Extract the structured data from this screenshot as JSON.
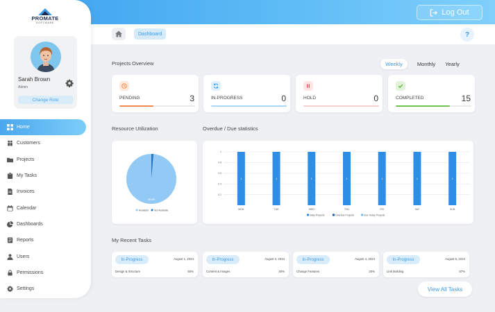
{
  "app": {
    "logo_text": "PROMATE",
    "logo_subtext": "SOFTWARE",
    "logout_label": "Log Out"
  },
  "profile": {
    "name": "Sarah Brown",
    "role": "Admin",
    "change_role_label": "Change Role"
  },
  "sidebar": {
    "items": [
      {
        "label": "Home",
        "icon": "grid-icon",
        "active": true
      },
      {
        "label": "Customers",
        "icon": "customers-icon"
      },
      {
        "label": "Projects",
        "icon": "folder-icon"
      },
      {
        "label": "My Tasks",
        "icon": "clipboard-icon"
      },
      {
        "label": "Invoices",
        "icon": "invoice-icon"
      },
      {
        "label": "Calendar",
        "icon": "calendar-icon"
      },
      {
        "label": "Dashboards",
        "icon": "pie-chart-icon"
      },
      {
        "label": "Reports",
        "icon": "report-icon"
      },
      {
        "label": "Users",
        "icon": "user-icon"
      },
      {
        "label": "Permissions",
        "icon": "lock-icon"
      },
      {
        "label": "Settings",
        "icon": "gear-icon"
      }
    ]
  },
  "breadcrumb": {
    "current": "Dashboard",
    "help_label": "?"
  },
  "overview": {
    "title": "Projects Overview",
    "periods": [
      "Weekly",
      "Monthly",
      "Yearly"
    ],
    "active_period": "Weekly",
    "cards": [
      {
        "label": "PENDING",
        "value": "3",
        "progress": 0.45,
        "color": "#f0894a",
        "icon_bg": "#fde9dc",
        "icon": "clock-icon"
      },
      {
        "label": "IN-PROGRESS",
        "value": "0",
        "progress": 1.0,
        "color": "#a9d9f7",
        "icon_bg": "#e0f1fc",
        "icon": "sync-icon"
      },
      {
        "label": "HOLD",
        "value": "0",
        "progress": 1.0,
        "color": "#f6cdd0",
        "icon_bg": "#fde4e6",
        "icon": "pause-icon"
      },
      {
        "label": "COMPLETED",
        "value": "15",
        "progress": 0.72,
        "color": "#6cc24a",
        "icon_bg": "#e3f3da",
        "icon": "check-icon"
      }
    ]
  },
  "resource": {
    "title": "Resource Utilization"
  },
  "overdue": {
    "title": "Overdue / Due statistics"
  },
  "chart_data": [
    {
      "type": "pie",
      "categories": [
        "Available",
        "Not Available"
      ],
      "values": [
        98.6,
        1.4
      ],
      "slice_label": "98.6%",
      "colors": [
        "#93c9f5",
        "#1f72c4"
      ],
      "legend": "bottom"
    },
    {
      "type": "bar",
      "categories": [
        "MON",
        "TUE",
        "WED",
        "THU",
        "FRI",
        "SAT",
        "SUN"
      ],
      "series": [
        {
          "name": "Daily Projects",
          "values": [
            1,
            1,
            1,
            1,
            1,
            1,
            1
          ],
          "color": "#2e8ee6",
          "data_labels": [
            "1",
            "1",
            "1",
            "1",
            "1",
            "1",
            "1"
          ]
        },
        {
          "name": "Overdue Projects",
          "values": [
            0,
            0,
            0,
            0,
            0,
            0,
            0
          ],
          "color": "#1a5fa8"
        },
        {
          "name": "Due Today Projects",
          "values": [
            0,
            0,
            0,
            0,
            0,
            0,
            0
          ],
          "color": "#7cc0f2"
        }
      ],
      "yticks": [
        "0.2",
        "0.4",
        "0.6",
        "0.8",
        "1"
      ],
      "ylim": [
        0,
        1
      ],
      "grid": true,
      "legend": "bottom"
    }
  ],
  "recent_tasks": {
    "title": "My Recent Tasks",
    "view_all_label": "View All Tasks",
    "items": [
      {
        "status": "In-Progress",
        "date": "August 1, 2024",
        "name": "Design & Structure",
        "percent": "50%"
      },
      {
        "status": "In-Progress",
        "date": "August 3, 2024",
        "name": "Content & Images",
        "percent": "40%"
      },
      {
        "status": "In-Progress",
        "date": "August 4, 2024",
        "name": "Change Features",
        "percent": "20%"
      },
      {
        "status": "In-Progress",
        "date": "August 5, 2024",
        "name": "Link Building",
        "percent": "87%"
      }
    ]
  }
}
